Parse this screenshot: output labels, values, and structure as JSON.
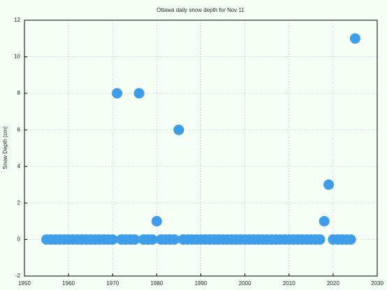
{
  "chart_data": {
    "type": "scatter",
    "title": "Ottawa daily snow depth for Nov 11",
    "y_label": "Snow Depth (cm)",
    "x": [
      1955,
      1956,
      1957,
      1958,
      1959,
      1960,
      1961,
      1962,
      1963,
      1964,
      1965,
      1966,
      1967,
      1968,
      1969,
      1970,
      1971,
      1972,
      1973,
      1974,
      1975,
      1976,
      1977,
      1978,
      1979,
      1980,
      1981,
      1982,
      1983,
      1984,
      1985,
      1986,
      1987,
      1988,
      1989,
      1990,
      1991,
      1992,
      1993,
      1994,
      1995,
      1996,
      1997,
      1998,
      1999,
      2000,
      2001,
      2002,
      2003,
      2004,
      2005,
      2006,
      2007,
      2008,
      2009,
      2010,
      2011,
      2012,
      2013,
      2014,
      2015,
      2016,
      2017,
      2018,
      2019,
      2020,
      2021,
      2022,
      2023,
      2024,
      2025
    ],
    "values": [
      0,
      0,
      0,
      0,
      0,
      0,
      0,
      0,
      0,
      0,
      0,
      0,
      0,
      0,
      0,
      0,
      8,
      0,
      0,
      0,
      0,
      8,
      0,
      0,
      0,
      1,
      0,
      0,
      0,
      0,
      6,
      0,
      0,
      0,
      0,
      0,
      0,
      0,
      0,
      0,
      0,
      0,
      0,
      0,
      0,
      0,
      0,
      0,
      0,
      0,
      0,
      0,
      0,
      0,
      0,
      0,
      0,
      0,
      0,
      0,
      0,
      0,
      0,
      1,
      3,
      0,
      0,
      0,
      0,
      0,
      11
    ],
    "color": "#3d9de8",
    "xlim": [
      1950,
      2030
    ],
    "xticks": [
      1950,
      1960,
      1970,
      1980,
      1990,
      2000,
      2010,
      2020,
      2030
    ],
    "ylim": [
      -2,
      12
    ],
    "yticks": [
      -2,
      0,
      2,
      4,
      6,
      8,
      10,
      12
    ],
    "grid": true
  }
}
